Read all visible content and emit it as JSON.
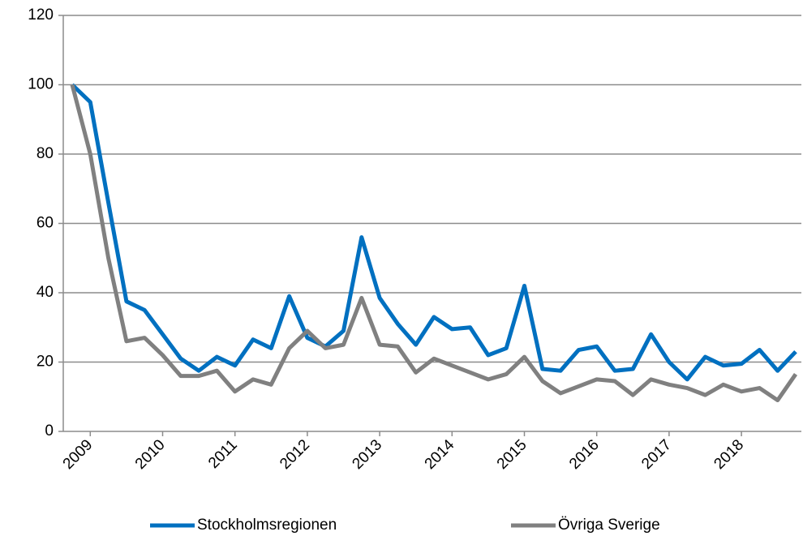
{
  "chart_data": {
    "type": "line",
    "categories": [
      null,
      "2009",
      null,
      null,
      null,
      "2010",
      null,
      null,
      null,
      "2011",
      null,
      null,
      null,
      "2012",
      null,
      null,
      null,
      "2013",
      null,
      null,
      null,
      "2014",
      null,
      null,
      null,
      "2015",
      null,
      null,
      null,
      "2016",
      null,
      null,
      null,
      "2017",
      null,
      null,
      null,
      "2018",
      null,
      null,
      null
    ],
    "series": [
      {
        "name": "Stockholmsregionen",
        "color": "#0070c0",
        "values": [
          100,
          95,
          66,
          37.5,
          35,
          28,
          21,
          17.5,
          21.5,
          19,
          26.5,
          24,
          39,
          27,
          24.5,
          29,
          56,
          38.5,
          31,
          25,
          33,
          29.5,
          30,
          22,
          24,
          42,
          18,
          17.5,
          23.5,
          24.5,
          17.5,
          18,
          28,
          20,
          15,
          21.5,
          19,
          19.5,
          23.5,
          17.5,
          23
        ]
      },
      {
        "name": "Övriga Sverige",
        "color": "#808080",
        "values": [
          100,
          80,
          50,
          26,
          27,
          22,
          16,
          16,
          17.5,
          11.5,
          15,
          13.5,
          24,
          29,
          24,
          25,
          38.5,
          25,
          24.5,
          17,
          21,
          19,
          17,
          15,
          16.5,
          21.5,
          14.5,
          11,
          13,
          15,
          14.5,
          10.5,
          15,
          13.5,
          12.5,
          10.5,
          13.5,
          11.5,
          12.5,
          9,
          16.5
        ]
      }
    ],
    "ylim": [
      0,
      120
    ],
    "yticks": [
      0,
      20,
      40,
      60,
      80,
      100,
      120
    ],
    "grid": true,
    "legend": "bottom"
  }
}
